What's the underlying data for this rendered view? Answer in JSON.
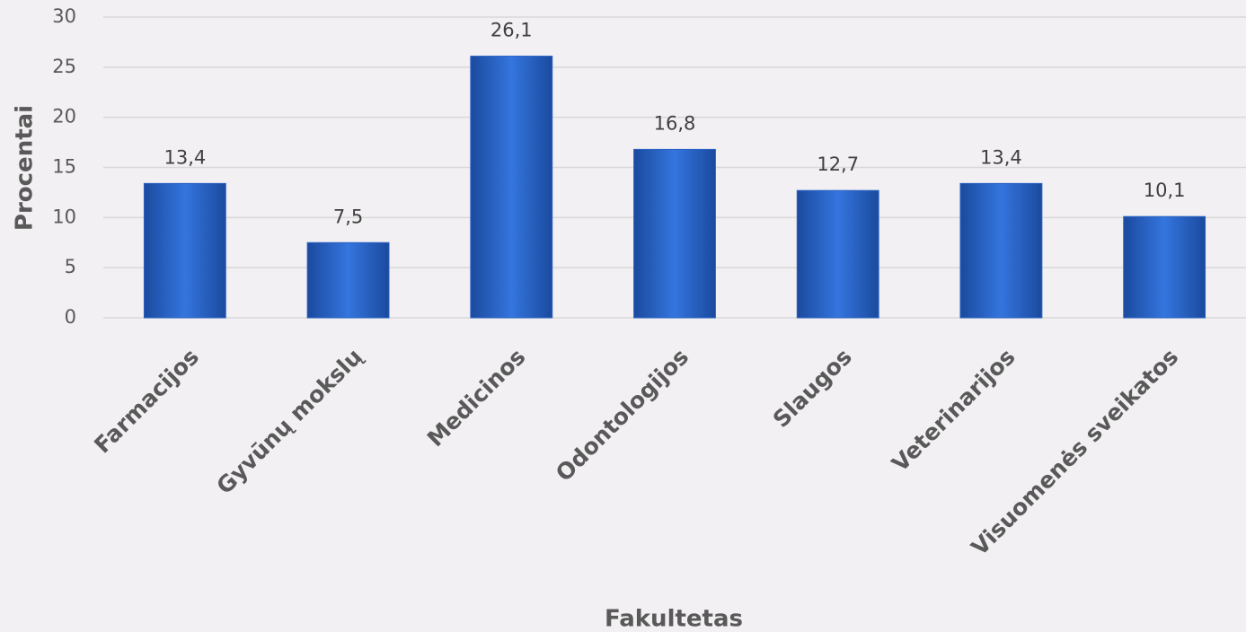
{
  "chart_data": {
    "type": "bar",
    "x_label": "Fakultetas",
    "y_label": "Procentai",
    "categories": [
      "Farmacijos",
      "Gyvūnų mokslų",
      "Medicinos",
      "Odontologijos",
      "Slaugos",
      "Veterinarijos",
      "Visuomenės sveikatos"
    ],
    "values": [
      13.4,
      7.5,
      26.1,
      16.8,
      12.7,
      13.4,
      10.1
    ],
    "value_labels": [
      "13,4",
      "7,5",
      "26,1",
      "16,8",
      "12,7",
      "13,4",
      "10,1"
    ],
    "color": "#2a62c4",
    "ylim": [
      0,
      30
    ],
    "yticks": [
      0,
      5,
      10,
      15,
      20,
      25,
      30
    ],
    "grid": true
  }
}
